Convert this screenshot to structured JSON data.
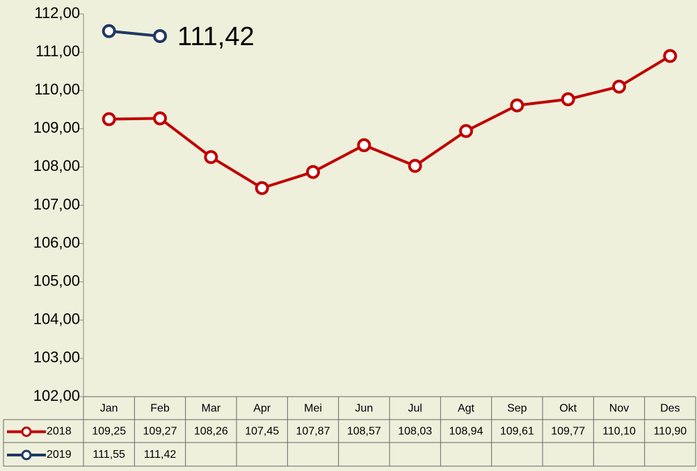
{
  "chart_data": {
    "type": "line",
    "categories": [
      "Jan",
      "Feb",
      "Mar",
      "Apr",
      "Mei",
      "Jun",
      "Jul",
      "Agt",
      "Sep",
      "Okt",
      "Nov",
      "Des"
    ],
    "series": [
      {
        "name": "2018",
        "color": "#c00000",
        "values": [
          109.25,
          109.27,
          108.26,
          107.45,
          107.87,
          108.57,
          108.03,
          108.94,
          109.61,
          109.77,
          110.1,
          110.9
        ],
        "value_labels": [
          "109,25",
          "109,27",
          "108,26",
          "107,45",
          "107,87",
          "108,57",
          "108,03",
          "108,94",
          "109,61",
          "109,77",
          "110,10",
          "110,90"
        ]
      },
      {
        "name": "2019",
        "color": "#1f3864",
        "values": [
          111.55,
          111.42,
          null,
          null,
          null,
          null,
          null,
          null,
          null,
          null,
          null,
          null
        ],
        "value_labels": [
          "111,55",
          "111,42",
          null,
          null,
          null,
          null,
          null,
          null,
          null,
          null,
          null,
          null
        ]
      }
    ],
    "ylim": [
      102,
      112
    ],
    "yticks": [
      {
        "value": 102,
        "label": "102,00"
      },
      {
        "value": 103,
        "label": "103,00"
      },
      {
        "value": 104,
        "label": "104,00"
      },
      {
        "value": 105,
        "label": "105,00"
      },
      {
        "value": 106,
        "label": "106,00"
      },
      {
        "value": 107,
        "label": "107,00"
      },
      {
        "value": 108,
        "label": "108,00"
      },
      {
        "value": 109,
        "label": "109,00"
      },
      {
        "value": 110,
        "label": "110,00"
      },
      {
        "value": 111,
        "label": "111,00"
      },
      {
        "value": 112,
        "label": "112,00"
      }
    ],
    "grid": false
  }
}
